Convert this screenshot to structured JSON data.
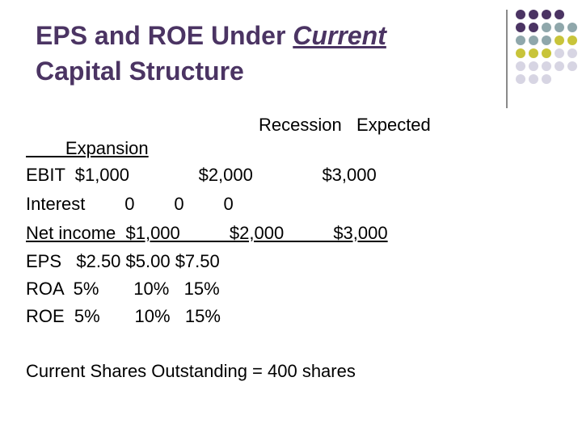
{
  "title": {
    "line1_prefix": "EPS and ROE Under ",
    "line1_emph": "Current",
    "line2": "Capital Structure"
  },
  "header": {
    "line1": "Recession   Expected",
    "line2": "        Expansion"
  },
  "rows": [
    {
      "text": "EBIT  $1,000              $2,000              $3,000"
    },
    {
      "text": "Interest        0        0        0"
    },
    {
      "text": "Net income  $1,000          $2,000          $3,000"
    },
    {
      "text": "EPS   $2.50 $5.00 $7.50"
    },
    {
      "text": "ROA  5%       10%   15%"
    },
    {
      "text": "ROE  5%       10%   15%"
    }
  ],
  "footer": "Current Shares Outstanding = 400 shares",
  "colors": {
    "title": "#4b3463",
    "dot_purple": "#4b3463",
    "dot_teal": "#8fa7ab",
    "dot_olive": "#c8c43a",
    "dot_lavender": "#d7d5e3"
  }
}
